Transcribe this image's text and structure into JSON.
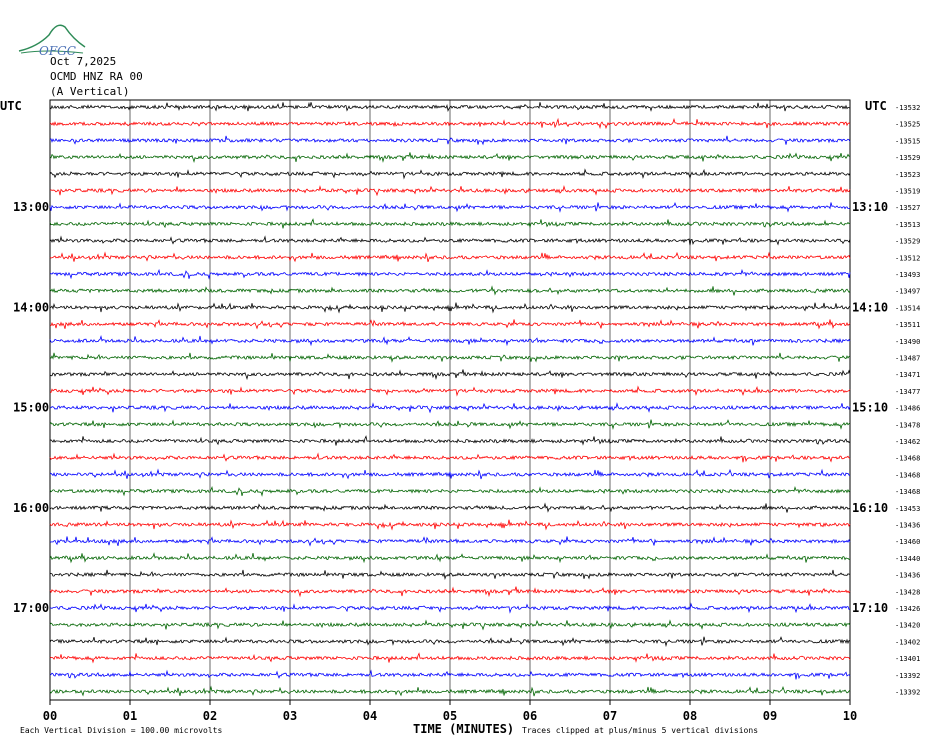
{
  "header": {
    "date": "Oct 7,2025",
    "station": "OCMD HNZ RA 00",
    "component": "(A Vertical)",
    "utc_left": "UTC",
    "utc_right": "UTC",
    "logo_text": "OFGC"
  },
  "footer": {
    "scale_note": "Each Vertical Division = 100.00 microvolts",
    "xlabel": "TIME (MINUTES)",
    "clip_note": "Traces clipped at plus/minus 5 vertical divisions"
  },
  "colors": {
    "black": "#000000",
    "red": "#ff0000",
    "blue": "#0000ff",
    "green": "#006400",
    "grid": "#000000"
  },
  "chart_data": {
    "type": "line",
    "title": "",
    "xlabel": "TIME (MINUTES)",
    "ylabel": "",
    "xlim": [
      0,
      10
    ],
    "x_ticks": [
      "00",
      "01",
      "02",
      "03",
      "04",
      "05",
      "06",
      "07",
      "08",
      "09",
      "10"
    ],
    "color_cycle": [
      "black",
      "red",
      "blue",
      "green"
    ],
    "left_time_labels": [
      {
        "row": 6,
        "label": "13:00"
      },
      {
        "row": 12,
        "label": "14:00"
      },
      {
        "row": 18,
        "label": "15:00"
      },
      {
        "row": 24,
        "label": "16:00"
      },
      {
        "row": 30,
        "label": "17:00"
      }
    ],
    "right_time_labels": [
      {
        "row": 6,
        "label": "13:10"
      },
      {
        "row": 12,
        "label": "14:10"
      },
      {
        "row": 18,
        "label": "15:10"
      },
      {
        "row": 24,
        "label": "16:10"
      },
      {
        "row": 30,
        "label": "17:10"
      }
    ],
    "trace_offsets": [
      "-13532",
      "-13525",
      "-13515",
      "-13529",
      "-13523",
      "-13519",
      "-13527",
      "-13513",
      "-13529",
      "-13512",
      "-13493",
      "-13497",
      "-13514",
      "-13511",
      "-13490",
      "-13487",
      "-13471",
      "-13477",
      "-13486",
      "-13478",
      "-13462",
      "-13468",
      "-13468",
      "-13468",
      "-13453",
      "-13436",
      "-13460",
      "-13440",
      "-13436",
      "-13428",
      "-13426",
      "-13420",
      "-13402",
      "-13401",
      "-13392",
      "-13392"
    ],
    "series_count": 36
  }
}
